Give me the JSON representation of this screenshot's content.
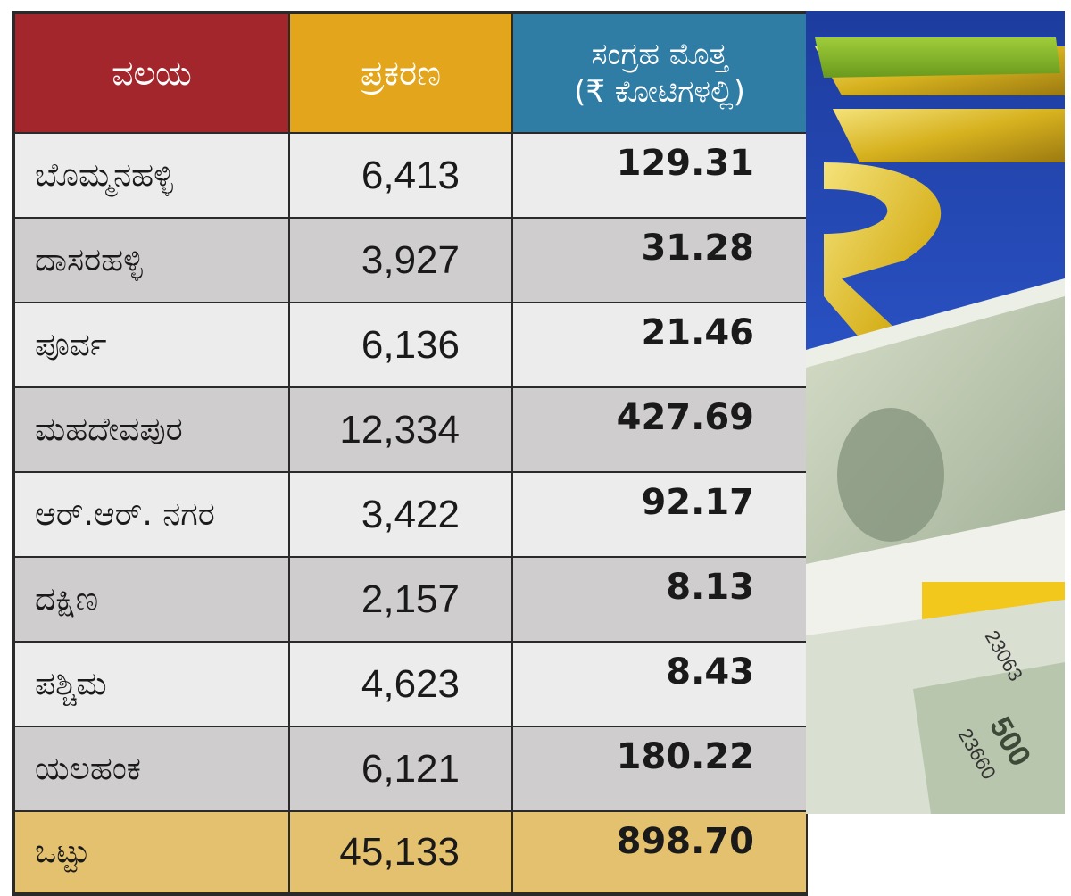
{
  "chart_data": {
    "type": "table",
    "columns": [
      "ವಲಯ",
      "ಪ್ರಕರಣ",
      "ಸಂಗ್ರಹ ಮೊತ್ತ\n(₹ ಕೋಟಿಗಳಲ್ಲಿ)"
    ],
    "header": {
      "zone": "ವಲಯ",
      "cases": "ಪ್ರಕರಣ",
      "amount_line1": "ಸಂಗ್ರಹ ಮೊತ್ತ",
      "amount_line2": "(₹ ಕೋಟಿಗಳಲ್ಲಿ)"
    },
    "rows": [
      {
        "zone": "ಬೊಮ್ಮನಹಳ್ಳಿ",
        "cases": "6,413",
        "amount": "129.31"
      },
      {
        "zone": "ದಾಸರಹಳ್ಳಿ",
        "cases": "3,927",
        "amount": "31.28"
      },
      {
        "zone": "ಪೂರ್ವ",
        "cases": "6,136",
        "amount": "21.46"
      },
      {
        "zone": "ಮಹದೇವಪುರ",
        "cases": "12,334",
        "amount": "427.69"
      },
      {
        "zone": "ಆರ್.ಆರ್. ನಗರ",
        "cases": "3,422",
        "amount": "92.17"
      },
      {
        "zone": "ದಕ್ಷಿಣ",
        "cases": "2,157",
        "amount": "8.13"
      },
      {
        "zone": "ಪಶ್ಚಿಮ",
        "cases": "4,623",
        "amount": "8.43"
      },
      {
        "zone": "ಯಲಹಂಕ",
        "cases": "6,121",
        "amount": "180.22"
      }
    ],
    "total": {
      "zone": "ಒಟ್ಟು",
      "cases": "45,133",
      "amount": "898.70"
    }
  },
  "colors": {
    "header_zone": "#a3262d",
    "header_cases": "#e2a51b",
    "header_amount": "#2f7ca4",
    "row_light": "#ececec",
    "row_dark": "#cfcdcd",
    "total_row": "#e4c16f"
  },
  "illustration": {
    "icon": "rupee-symbol-with-banknotes-icon",
    "note_numbers": [
      "23063",
      "23660"
    ],
    "note_denomination": "500"
  }
}
